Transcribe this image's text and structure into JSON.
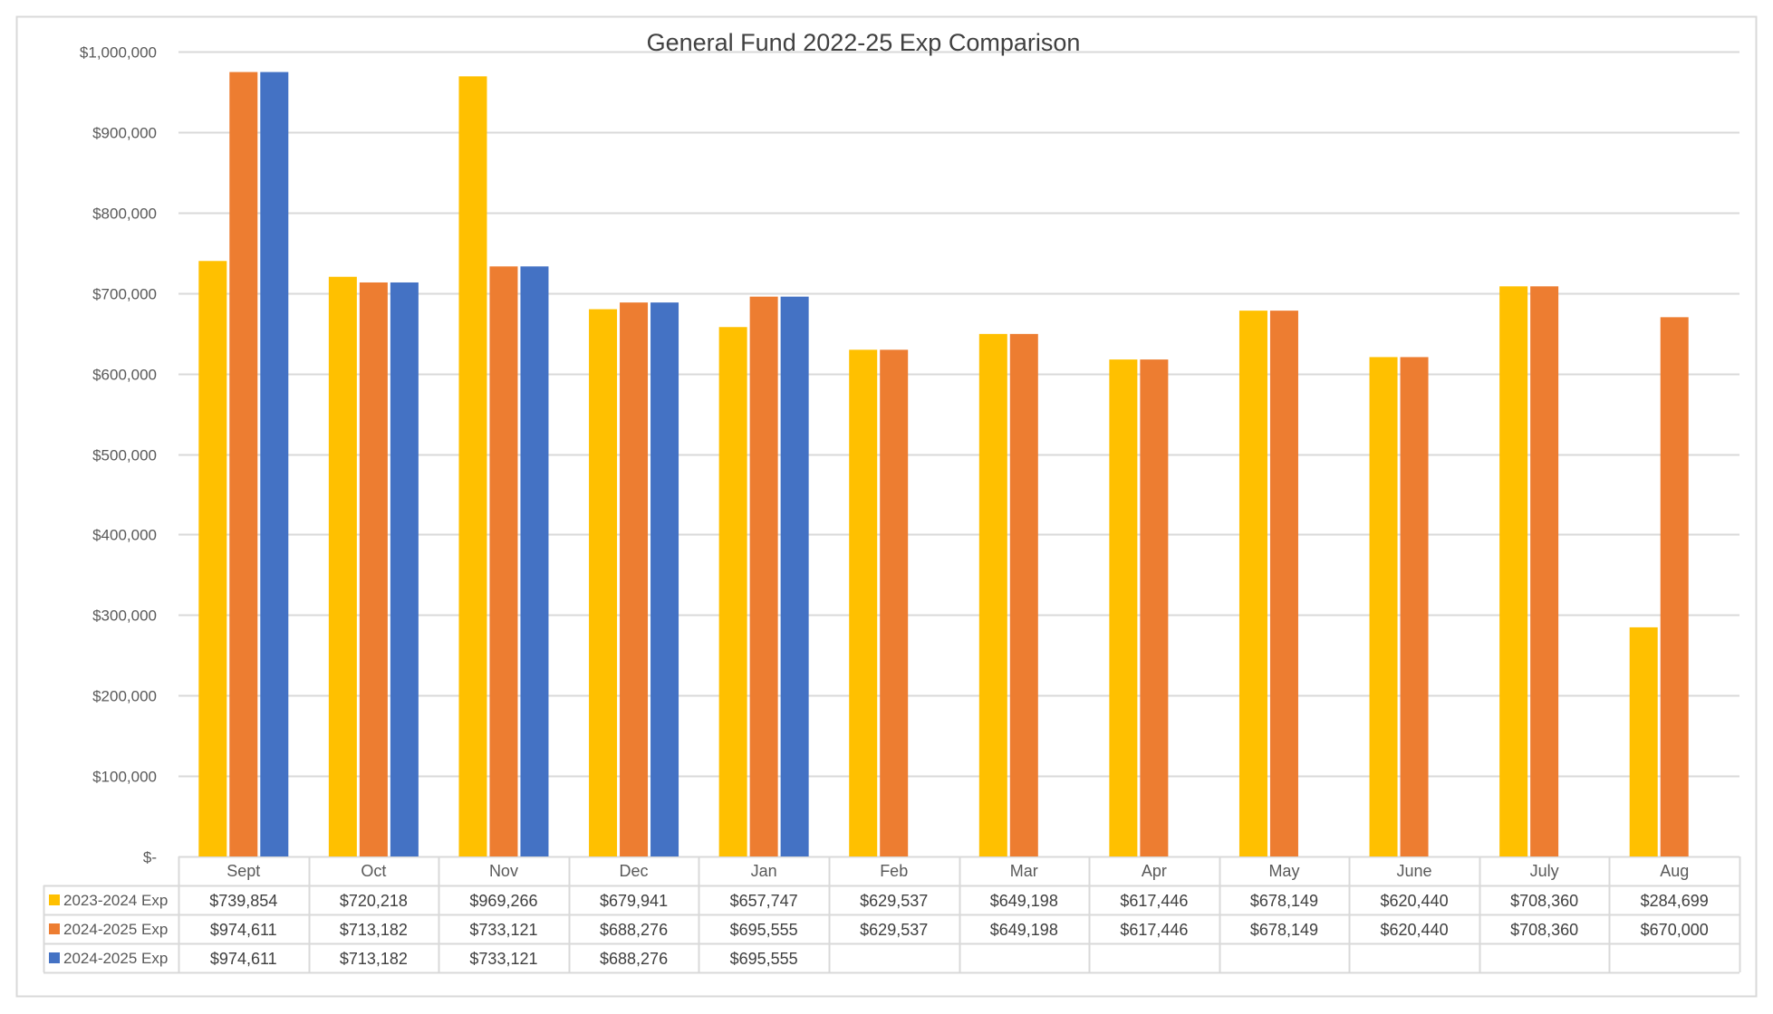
{
  "chart_data": {
    "type": "bar",
    "title": "General Fund 2022-25 Exp Comparison",
    "xlabel": "",
    "ylabel": "",
    "ylim": [
      0,
      1000000
    ],
    "yticks": [
      {
        "value": 0,
        "label": "$-"
      },
      {
        "value": 100000,
        "label": "$100,000"
      },
      {
        "value": 200000,
        "label": "$200,000"
      },
      {
        "value": 300000,
        "label": "$300,000"
      },
      {
        "value": 400000,
        "label": "$400,000"
      },
      {
        "value": 500000,
        "label": "$500,000"
      },
      {
        "value": 600000,
        "label": "$600,000"
      },
      {
        "value": 700000,
        "label": "$700,000"
      },
      {
        "value": 800000,
        "label": "$800,000"
      },
      {
        "value": 900000,
        "label": "$900,000"
      },
      {
        "value": 1000000,
        "label": "$1,000,000"
      }
    ],
    "grid": true,
    "legend": "data-table",
    "categories": [
      "Sept",
      "Oct",
      "Nov",
      "Dec",
      "Jan",
      "Feb",
      "Mar",
      "Apr",
      "May",
      "June",
      "July",
      "Aug"
    ],
    "series": [
      {
        "name": "2023-2024 Exp",
        "color": "#FFC000",
        "values": [
          739854,
          720218,
          969266,
          679941,
          657747,
          629537,
          649198,
          617446,
          678149,
          620440,
          708360,
          284699
        ],
        "labels": [
          "$739,854",
          "$720,218",
          "$969,266",
          "$679,941",
          "$657,747",
          "$629,537",
          "$649,198",
          "$617,446",
          "$678,149",
          "$620,440",
          "$708,360",
          "$284,699"
        ]
      },
      {
        "name": "2024-2025 Exp",
        "color": "#ED7D31",
        "values": [
          974611,
          713182,
          733121,
          688276,
          695555,
          629537,
          649198,
          617446,
          678149,
          620440,
          708360,
          670000
        ],
        "labels": [
          "$974,611",
          "$713,182",
          "$733,121",
          "$688,276",
          "$695,555",
          "$629,537",
          "$649,198",
          "$617,446",
          "$678,149",
          "$620,440",
          "$708,360",
          "$670,000"
        ]
      },
      {
        "name": "2024-2025 Exp",
        "color": "#4472C4",
        "values": [
          974611,
          713182,
          733121,
          688276,
          695555,
          null,
          null,
          null,
          null,
          null,
          null,
          null
        ],
        "labels": [
          "$974,611",
          "$713,182",
          "$733,121",
          "$688,276",
          "$695,555",
          "",
          "",
          "",
          "",
          "",
          "",
          ""
        ]
      }
    ]
  }
}
